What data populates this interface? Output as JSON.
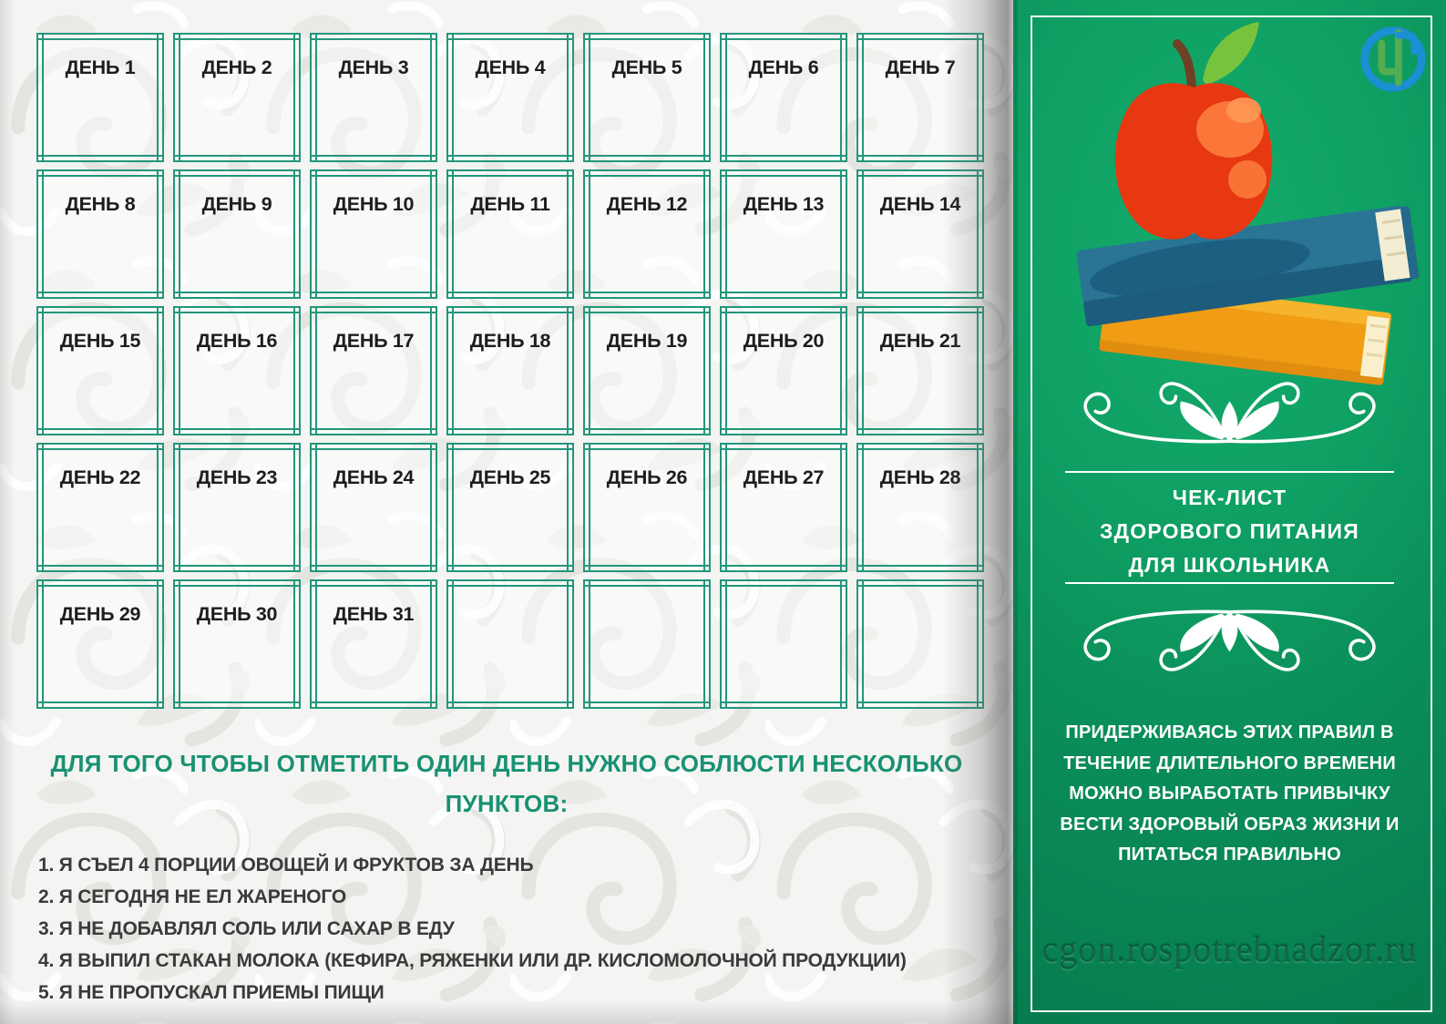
{
  "checklist": {
    "day_labels": [
      "ДЕНЬ 1",
      "ДЕНЬ 2",
      "ДЕНЬ 3",
      "ДЕНЬ 4",
      "ДЕНЬ 5",
      "ДЕНЬ 6",
      "ДЕНЬ 7",
      "ДЕНЬ 8",
      "ДЕНЬ 9",
      "ДЕНЬ 10",
      "ДЕНЬ 11",
      "ДЕНЬ 12",
      "ДЕНЬ 13",
      "ДЕНЬ 14",
      "ДЕНЬ 15",
      "ДЕНЬ 16",
      "ДЕНЬ 17",
      "ДЕНЬ 18",
      "ДЕНЬ 19",
      "ДЕНЬ 20",
      "ДЕНЬ 21",
      "ДЕНЬ 22",
      "ДЕНЬ 23",
      "ДЕНЬ 24",
      "ДЕНЬ 25",
      "ДЕНЬ 26",
      "ДЕНЬ 27",
      "ДЕНЬ 28",
      "ДЕНЬ 29",
      "ДЕНЬ 30",
      "ДЕНЬ 31"
    ],
    "empty_box_count": 4,
    "heading": "ДЛЯ ТОГО ЧТОБЫ ОТМЕТИТЬ ОДИН ДЕНЬ НУЖНО СОБЛЮСТИ НЕСКОЛЬКО ПУНКТОВ:",
    "rules": [
      "1. Я СЪЕЛ 4 ПОРЦИИ ОВОЩЕЙ И ФРУКТОВ ЗА ДЕНЬ",
      "2. Я СЕГОДНЯ НЕ ЕЛ ЖАРЕНОГО",
      "3. Я НЕ ДОБАВЛЯЛ СОЛЬ ИЛИ САХАР В ЕДУ",
      "4. Я ВЫПИЛ СТАКАН МОЛОКА (КЕФИРА, РЯЖЕНКИ ИЛИ ДР. КИСЛОМОЛОЧНОЙ ПРОДУКЦИИ)",
      "5. Я НЕ ПРОПУСКАЛ ПРИЕМЫ ПИЩИ"
    ]
  },
  "panel": {
    "title_line1": "ЧЕК-ЛИСТ",
    "title_line2": "ЗДОРОВОГО ПИТАНИЯ",
    "title_line3": "ДЛЯ ШКОЛЬНИКА",
    "paragraph": "ПРИДЕРЖИВАЯСЬ ЭТИХ ПРАВИЛ В ТЕЧЕНИЕ ДЛИТЕЛЬНОГО ВРЕМЕНИ МОЖНО ВЫРАБОТАТЬ ПРИВЫЧКУ ВЕСТИ ЗДОРОВЫЙ ОБРАЗ ЖИЗНИ И ПИТАТЬСЯ ПРАВИЛЬНО",
    "watermark": "cgon.rospotrebnadzor.ru"
  },
  "icons": {
    "logo": "cgon-monogram-icon",
    "illustration": "apple-on-books-icon",
    "ornament": "flourish-ornament-icon"
  },
  "colors": {
    "box_border_green": "#23967b",
    "heading_green": "#189172",
    "panel_green_light": "#15aa6c",
    "panel_green_dark": "#077c4e",
    "logo_blue": "#1b8fd2",
    "logo_green": "#54ad50",
    "apple_red": "#e73812",
    "apple_highlight": "#fb7a3c",
    "leaf_green": "#78c33e",
    "stem_brown": "#6f4124",
    "book_blue": "#2a7496",
    "book_blue_dark": "#1d5c7c",
    "book_orange": "#f09c15",
    "book_orange_light": "#f6b42c",
    "pages_cream": "#f3edd3",
    "text_dark": "#3a3a3a"
  }
}
